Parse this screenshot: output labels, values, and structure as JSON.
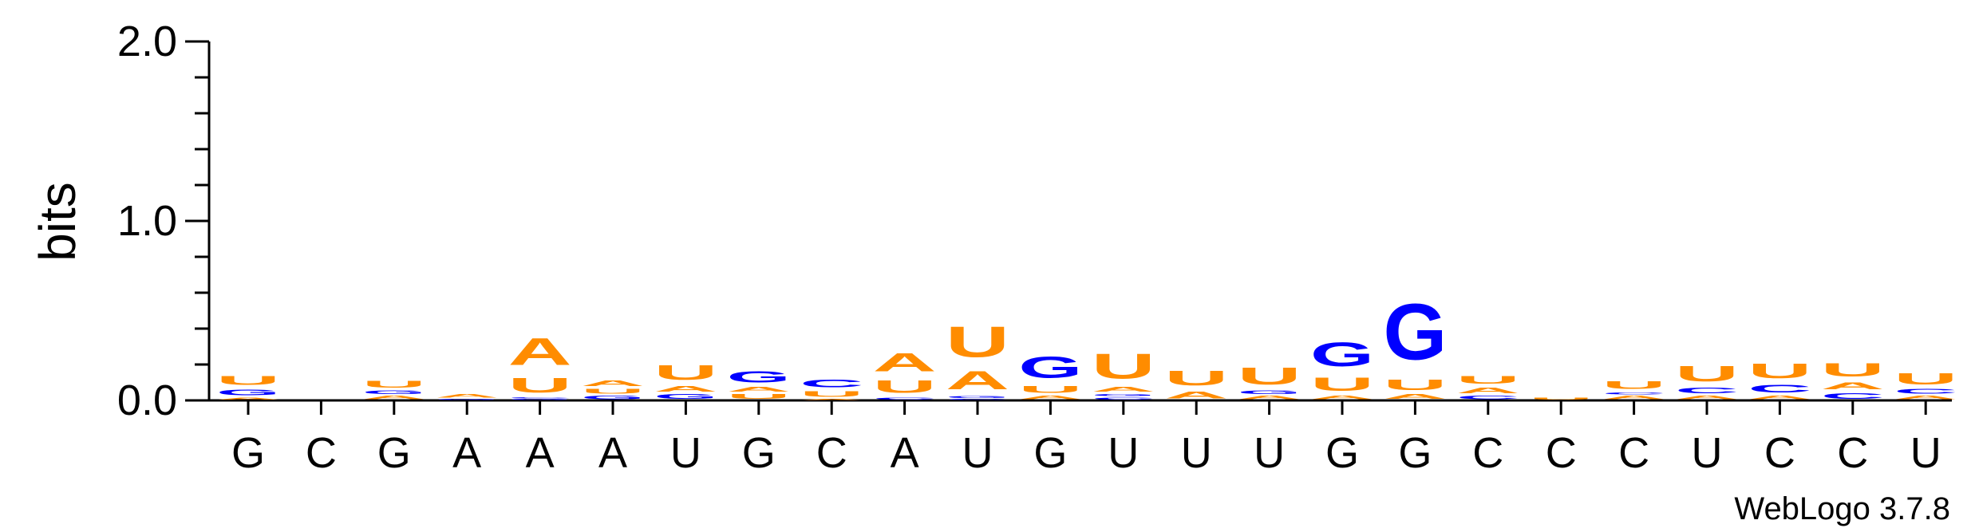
{
  "chart_data": {
    "type": "sequence-logo",
    "ylabel": "bits",
    "ylim": [
      0,
      2.0
    ],
    "yticks": [
      "0.0",
      "1.0",
      "2.0"
    ],
    "credit": "WebLogo 3.7.8",
    "colors": {
      "A": "#ff8c00",
      "U": "#ff8c00",
      "G": "#0000ff",
      "C": "#0000ff"
    },
    "positions": [
      {
        "label": "G",
        "stack": [
          [
            "A",
            0.02
          ],
          [
            "G",
            0.05
          ],
          [
            "U",
            0.08
          ]
        ]
      },
      {
        "label": "C",
        "stack": []
      },
      {
        "label": "G",
        "stack": [
          [
            "A",
            0.03
          ],
          [
            "G",
            0.03
          ],
          [
            "U",
            0.06
          ]
        ]
      },
      {
        "label": "A",
        "stack": [
          [
            "G",
            0.01
          ],
          [
            "A",
            0.03
          ]
        ]
      },
      {
        "label": "A",
        "stack": [
          [
            "G",
            0.01
          ],
          [
            "C",
            0.01
          ],
          [
            "U",
            0.13
          ],
          [
            "A",
            0.24
          ]
        ]
      },
      {
        "label": "A",
        "stack": [
          [
            "G",
            0.03
          ],
          [
            "U",
            0.04
          ],
          [
            "A",
            0.05
          ]
        ]
      },
      {
        "label": "U",
        "stack": [
          [
            "G",
            0.04
          ],
          [
            "A",
            0.05
          ],
          [
            "U",
            0.13
          ]
        ]
      },
      {
        "label": "G",
        "stack": [
          [
            "U",
            0.04
          ],
          [
            "A",
            0.04
          ],
          [
            "G",
            0.1
          ]
        ]
      },
      {
        "label": "C",
        "stack": [
          [
            "A",
            0.01
          ],
          [
            "U",
            0.05
          ],
          [
            "C",
            0.07
          ]
        ]
      },
      {
        "label": "A",
        "stack": [
          [
            "C",
            0.02
          ],
          [
            "U",
            0.11
          ],
          [
            "A",
            0.16
          ]
        ]
      },
      {
        "label": "U",
        "stack": [
          [
            "C",
            0.01
          ],
          [
            "G",
            0.02
          ],
          [
            "A",
            0.16
          ],
          [
            "U",
            0.27
          ]
        ]
      },
      {
        "label": "G",
        "stack": [
          [
            "A",
            0.03
          ],
          [
            "U",
            0.06
          ],
          [
            "G",
            0.19
          ]
        ]
      },
      {
        "label": "U",
        "stack": [
          [
            "C",
            0.02
          ],
          [
            "G",
            0.02
          ],
          [
            "A",
            0.04
          ],
          [
            "U",
            0.22
          ]
        ]
      },
      {
        "label": "U",
        "stack": [
          [
            "A",
            0.06
          ],
          [
            "U",
            0.13
          ]
        ]
      },
      {
        "label": "U",
        "stack": [
          [
            "A",
            0.03
          ],
          [
            "G",
            0.03
          ],
          [
            "U",
            0.15
          ]
        ]
      },
      {
        "label": "G",
        "stack": [
          [
            "A",
            0.03
          ],
          [
            "U",
            0.12
          ],
          [
            "G",
            0.21
          ]
        ]
      },
      {
        "label": "G",
        "stack": [
          [
            "A",
            0.04
          ],
          [
            "U",
            0.09
          ],
          [
            "G",
            0.5
          ]
        ]
      },
      {
        "label": "C",
        "stack": [
          [
            "C",
            0.03
          ],
          [
            "A",
            0.05
          ],
          [
            "U",
            0.07
          ]
        ]
      },
      {
        "label": "C",
        "stack": [
          [
            "U",
            0.02
          ]
        ]
      },
      {
        "label": "C",
        "stack": [
          [
            "A",
            0.03
          ],
          [
            "C",
            0.02
          ],
          [
            "U",
            0.07
          ]
        ]
      },
      {
        "label": "U",
        "stack": [
          [
            "A",
            0.03
          ],
          [
            "C",
            0.05
          ],
          [
            "U",
            0.14
          ]
        ]
      },
      {
        "label": "C",
        "stack": [
          [
            "A",
            0.03
          ],
          [
            "C",
            0.07
          ],
          [
            "U",
            0.13
          ]
        ]
      },
      {
        "label": "C",
        "stack": [
          [
            "C",
            0.05
          ],
          [
            "A",
            0.06
          ],
          [
            "U",
            0.12
          ]
        ]
      },
      {
        "label": "U",
        "stack": [
          [
            "A",
            0.03
          ],
          [
            "C",
            0.04
          ],
          [
            "U",
            0.1
          ]
        ]
      }
    ]
  }
}
